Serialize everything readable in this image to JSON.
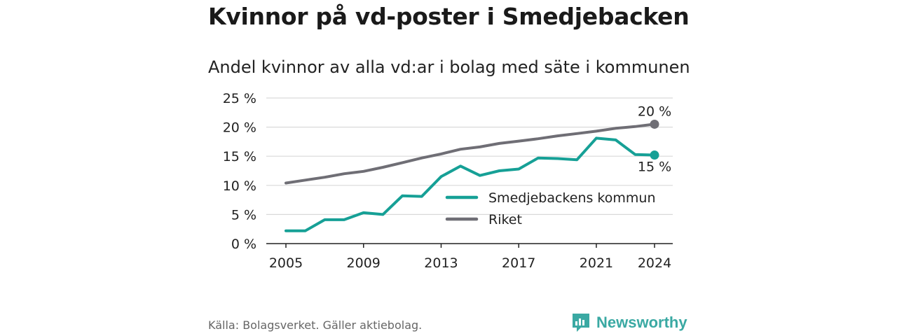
{
  "title": "Kvinnor på vd-poster i Smedjebacken",
  "subtitle": "Andel kvinnor av alla vd:ar i bolag med säte i kommunen",
  "source": "Källa: Bolagsverket. Gäller aktiebolag.",
  "brand": "Newsworthy",
  "colors": {
    "kommun": "#16a096",
    "riket": "#6f6e75",
    "brand": "#3aa9a3"
  },
  "chart_data": {
    "type": "line",
    "x": [
      2005,
      2006,
      2007,
      2008,
      2009,
      2010,
      2011,
      2012,
      2013,
      2014,
      2015,
      2016,
      2017,
      2018,
      2019,
      2020,
      2021,
      2022,
      2023,
      2024
    ],
    "ylim": [
      0,
      25
    ],
    "yticks": [
      "0 %",
      "5 %",
      "10 %",
      "15 %",
      "20 %",
      "25 %"
    ],
    "ytick_values": [
      0,
      5,
      10,
      15,
      20,
      25
    ],
    "xticks": [
      "2005",
      "2009",
      "2013",
      "2017",
      "2021",
      "2024"
    ],
    "xtick_values": [
      2005,
      2009,
      2013,
      2017,
      2021,
      2024
    ],
    "grid": true,
    "legend_position": "center-right",
    "series": [
      {
        "name": "Smedjebackens kommun",
        "color": "#16a096",
        "values": [
          2.2,
          2.2,
          4.1,
          4.1,
          5.3,
          5.0,
          8.2,
          8.1,
          11.5,
          13.3,
          11.7,
          12.5,
          12.8,
          14.7,
          14.6,
          14.4,
          18.1,
          17.8,
          15.3,
          15.2
        ],
        "end_label": "15 %"
      },
      {
        "name": "Riket",
        "color": "#6f6e75",
        "values": [
          10.4,
          10.9,
          11.4,
          12.0,
          12.4,
          13.1,
          13.9,
          14.7,
          15.4,
          16.2,
          16.6,
          17.2,
          17.6,
          18.0,
          18.5,
          18.9,
          19.3,
          19.8,
          20.1,
          20.5
        ],
        "end_label": "20 %"
      }
    ]
  }
}
